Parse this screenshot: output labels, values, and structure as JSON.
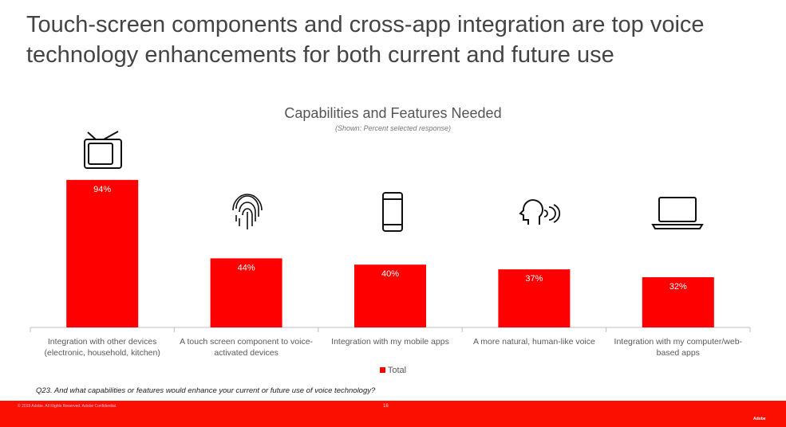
{
  "title": "Touch-screen components and cross-app integration are top voice technology enhancements for both current and future use",
  "chart_data": {
    "type": "bar",
    "title": "Capabilities and Features Needed",
    "subtitle": "(Shown: Percent selected response)",
    "categories": [
      "Integration with other devices (electronic, household, kitchen)",
      "A touch screen component to voice-activated devices",
      "Integration with my mobile apps",
      "A more natural, human-like voice",
      "Integration with my computer/web-based apps"
    ],
    "series": [
      {
        "name": "Total",
        "color": "#ff0000",
        "values": [
          94,
          44,
          40,
          37,
          32
        ],
        "value_labels": [
          "94%",
          "44%",
          "40%",
          "37%",
          "32%"
        ]
      }
    ]
  },
  "footnote": "Q23. And what capabilities or features would enhance your current or future use of voice technology?",
  "footer": {
    "copyright": "© 2019 Adobe. All Rights Reserved. Adobe Confidential.",
    "page": "16",
    "brand": "Adobe"
  }
}
